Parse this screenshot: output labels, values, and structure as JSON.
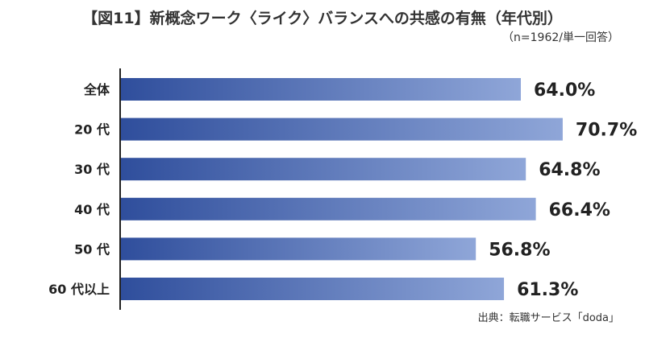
{
  "chart_data": {
    "type": "bar",
    "orientation": "horizontal",
    "title": "【図11】新概念ワーク〈ライク〉バランスへの共感の有無（年代別）",
    "subtitle": "（n=1962/単一回答）",
    "source": "出典：転職サービス「doda」",
    "categories": [
      "全体",
      "20 代",
      "30 代",
      "40 代",
      "50 代",
      "60 代以上"
    ],
    "values": [
      64.0,
      70.7,
      64.8,
      66.4,
      56.8,
      61.3
    ],
    "value_labels": [
      "64.0%",
      "70.7%",
      "64.8%",
      "66.4%",
      "56.8%",
      "61.3%"
    ],
    "unit": "%",
    "xlim": [
      0,
      100
    ],
    "grid": false,
    "legend": "none",
    "colors": {
      "bar_start": "#2f4e9c",
      "bar_end": "#8fa6d8",
      "axis": "#222222",
      "text": "#222222"
    }
  }
}
